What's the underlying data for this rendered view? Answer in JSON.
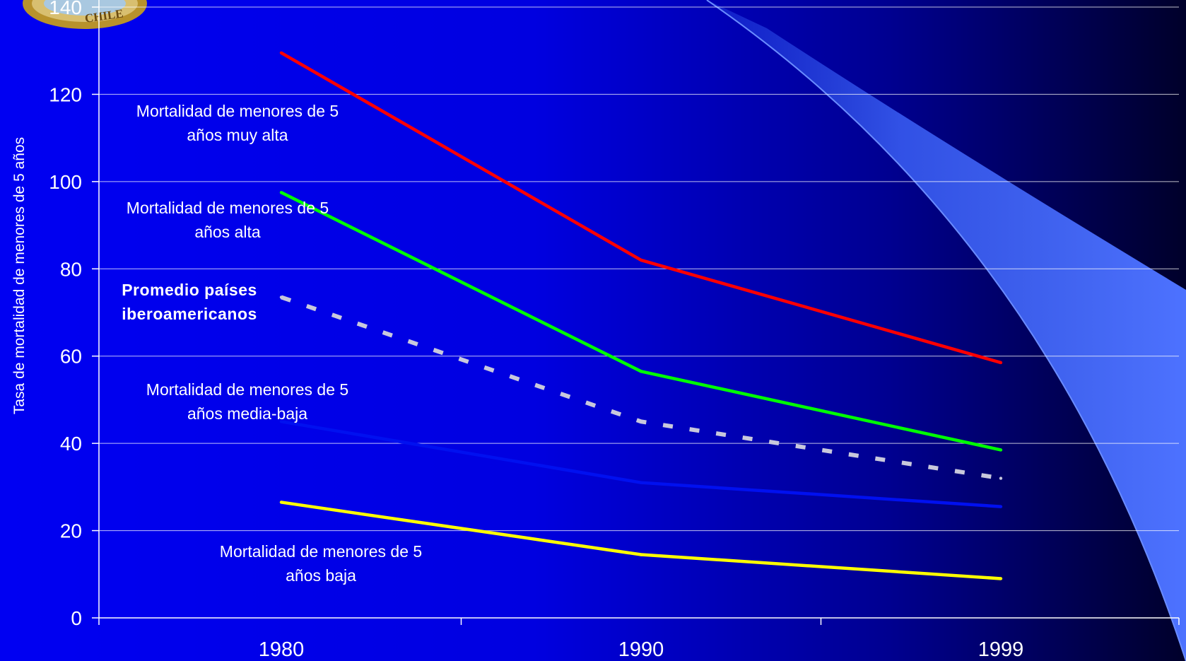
{
  "chart_data": {
    "type": "line",
    "categories": [
      "1980",
      "1990",
      "1999"
    ],
    "ylabel": "Tasa de mortalidad de menores de 5 años",
    "xlabel": "",
    "ylim": [
      0,
      140
    ],
    "yticks": [
      0,
      20,
      40,
      60,
      80,
      100,
      120,
      140
    ],
    "ytick_labels": [
      "0",
      "20",
      "40",
      "60",
      "80",
      "100",
      "120",
      "140"
    ],
    "grid": true,
    "legend": "inline annotations",
    "series": [
      {
        "color": "#ff0000",
        "dashed": false,
        "values": [
          129.5,
          82,
          58.5
        ]
      },
      {
        "color": "#00ff00",
        "dashed": false,
        "values": [
          97.5,
          56.5,
          38.5
        ]
      },
      {
        "color": "#c8c8dc",
        "dashed": true,
        "values": [
          73.5,
          45,
          32
        ]
      },
      {
        "color": "#0010f0",
        "dashed": false,
        "values": [
          45,
          31,
          25.5
        ]
      },
      {
        "color": "#ffff00",
        "dashed": false,
        "values": [
          26.5,
          14.5,
          9
        ]
      }
    ],
    "annotations": [
      {
        "lines": [
          "Mortalidad de menores de 5",
          "años muy alta"
        ],
        "bold": false
      },
      {
        "lines": [
          "Mortalidad de menores de 5",
          "años alta"
        ],
        "bold": false
      },
      {
        "lines": [
          "Promedio países",
          "iberoamericanos"
        ],
        "bold": true
      },
      {
        "lines": [
          "Mortalidad de menores de 5",
          "años media-baja"
        ],
        "bold": false
      },
      {
        "lines": [
          "Mortalidad de menores de 5",
          "años  baja"
        ],
        "bold": false
      }
    ]
  },
  "colors": {
    "gridline": "#ffffff",
    "text": "#ffffff",
    "swoosh": "#3e64ff",
    "seal": "#b8922c"
  },
  "logo": {
    "icon": "seal-logo-icon",
    "text": "CHILE"
  }
}
